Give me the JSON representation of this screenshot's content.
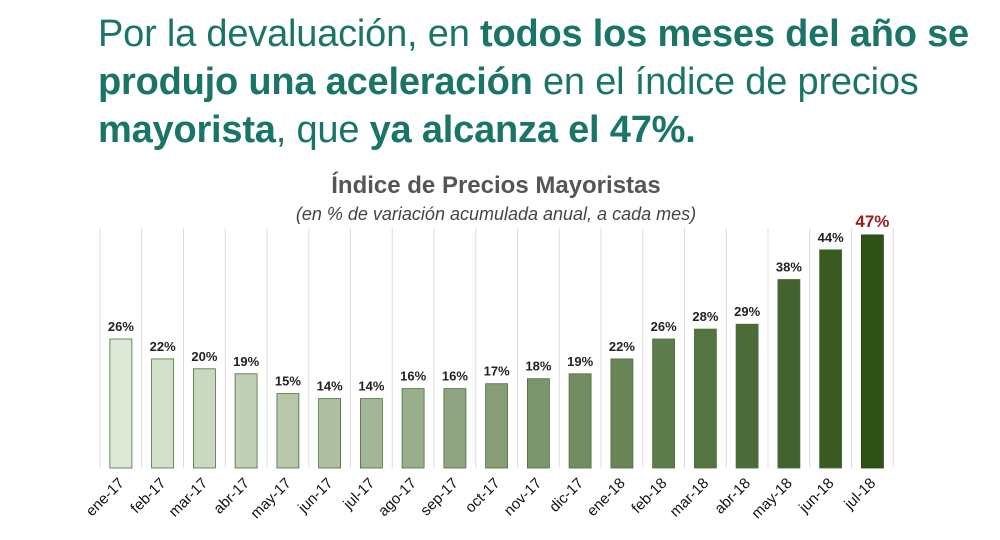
{
  "headline": {
    "p1": "Por la devaluación, en ",
    "b1": "todos los meses del año se produjo una aceleración",
    "p2": " en el índice de precios ",
    "b2": "mayorista",
    "p3": ", que ",
    "b3": "ya alcanza el 47%."
  },
  "colors": {
    "headline": "#1a7468",
    "highlight_label": "#9b1c1c",
    "bar_start": "#dde8d6",
    "bar_end": "#2f5218"
  },
  "chart_data": {
    "type": "bar",
    "title": "Índice de Precios Mayoristas",
    "subtitle": "(en % de variación acumulada anual, a cada mes)",
    "xlabel": "",
    "ylabel": "",
    "ylim": [
      0,
      50
    ],
    "grid": true,
    "categories": [
      "ene-17",
      "feb-17",
      "mar-17",
      "abr-17",
      "may-17",
      "jun-17",
      "jul-17",
      "ago-17",
      "sep-17",
      "oct-17",
      "nov-17",
      "dic-17",
      "ene-18",
      "feb-18",
      "mar-18",
      "abr-18",
      "may-18",
      "jun-18",
      "jul-18"
    ],
    "values": [
      26,
      22,
      20,
      19,
      15,
      14,
      14,
      16,
      16,
      17,
      18,
      19,
      22,
      26,
      28,
      29,
      38,
      44,
      47
    ],
    "labels": [
      "26%",
      "22%",
      "20%",
      "19%",
      "15%",
      "14%",
      "14%",
      "16%",
      "16%",
      "17%",
      "18%",
      "19%",
      "22%",
      "26%",
      "28%",
      "29%",
      "38%",
      "44%",
      "47%"
    ]
  }
}
